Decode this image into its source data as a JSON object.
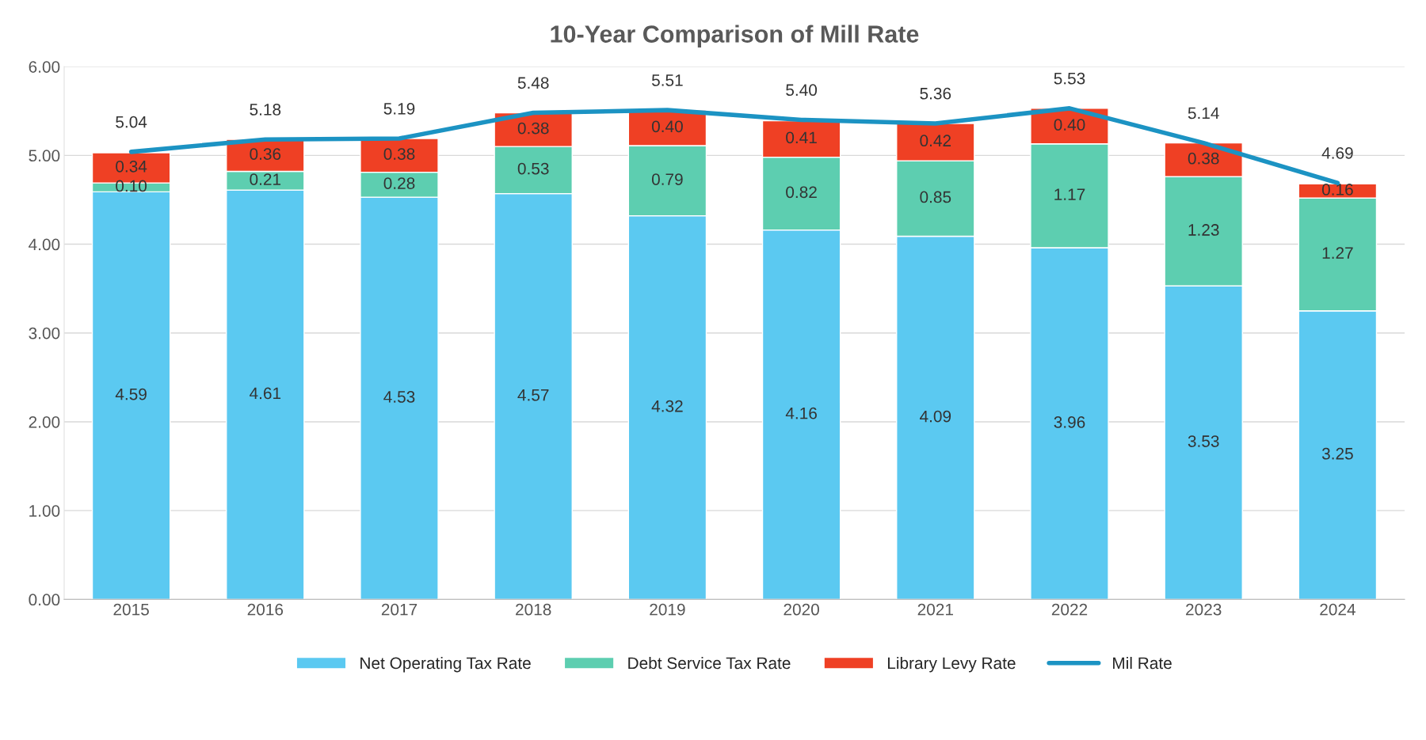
{
  "chart_data": {
    "type": "bar",
    "title": "10-Year Comparison of Mill Rate",
    "categories": [
      "2015",
      "2016",
      "2017",
      "2018",
      "2019",
      "2020",
      "2021",
      "2022",
      "2023",
      "2024"
    ],
    "stacked": true,
    "series": [
      {
        "name": "Net Operating Tax Rate",
        "color": "#5bc9f1",
        "values": [
          4.59,
          4.61,
          4.53,
          4.57,
          4.32,
          4.16,
          4.09,
          3.96,
          3.53,
          3.25
        ],
        "value_labels": [
          "4.59",
          "4.61",
          "4.53",
          "4.57",
          "4.32",
          "4.16",
          "4.09",
          "3.96",
          "3.53",
          "3.25"
        ]
      },
      {
        "name": "Debt Service Tax Rate",
        "color": "#5dceb0",
        "values": [
          0.1,
          0.21,
          0.28,
          0.53,
          0.79,
          0.82,
          0.85,
          1.17,
          1.23,
          1.27
        ],
        "value_labels": [
          "0.10",
          "0.21",
          "0.28",
          "0.53",
          "0.79",
          "0.82",
          "0.85",
          "1.17",
          "1.23",
          "1.27"
        ]
      },
      {
        "name": "Library Levy Rate",
        "color": "#ef4024",
        "values": [
          0.34,
          0.36,
          0.38,
          0.38,
          0.4,
          0.41,
          0.42,
          0.4,
          0.38,
          0.16
        ],
        "value_labels": [
          "0.34",
          "0.36",
          "0.38",
          "0.38",
          "0.40",
          "0.41",
          "0.42",
          "0.40",
          "0.38",
          "0.16"
        ]
      },
      {
        "name": "Mil Rate",
        "type": "line",
        "color": "#1c93c3",
        "values": [
          5.04,
          5.18,
          5.19,
          5.48,
          5.51,
          5.4,
          5.36,
          5.53,
          5.14,
          4.69
        ],
        "value_labels": [
          "5.04",
          "5.18",
          "5.19",
          "5.48",
          "5.51",
          "5.40",
          "5.36",
          "5.53",
          "5.14",
          "4.69"
        ]
      }
    ],
    "ylim": [
      0,
      6
    ],
    "yticks": [
      {
        "value": 0,
        "label": "0.00"
      },
      {
        "value": 1,
        "label": "1.00"
      },
      {
        "value": 2,
        "label": "2.00"
      },
      {
        "value": 3,
        "label": "3.00"
      },
      {
        "value": 4,
        "label": "4.00"
      },
      {
        "value": 5,
        "label": "5.00"
      },
      {
        "value": 6,
        "label": "6.00"
      }
    ],
    "grid": "y",
    "legend": "bottom",
    "marker": "none",
    "line_style": "solid"
  }
}
